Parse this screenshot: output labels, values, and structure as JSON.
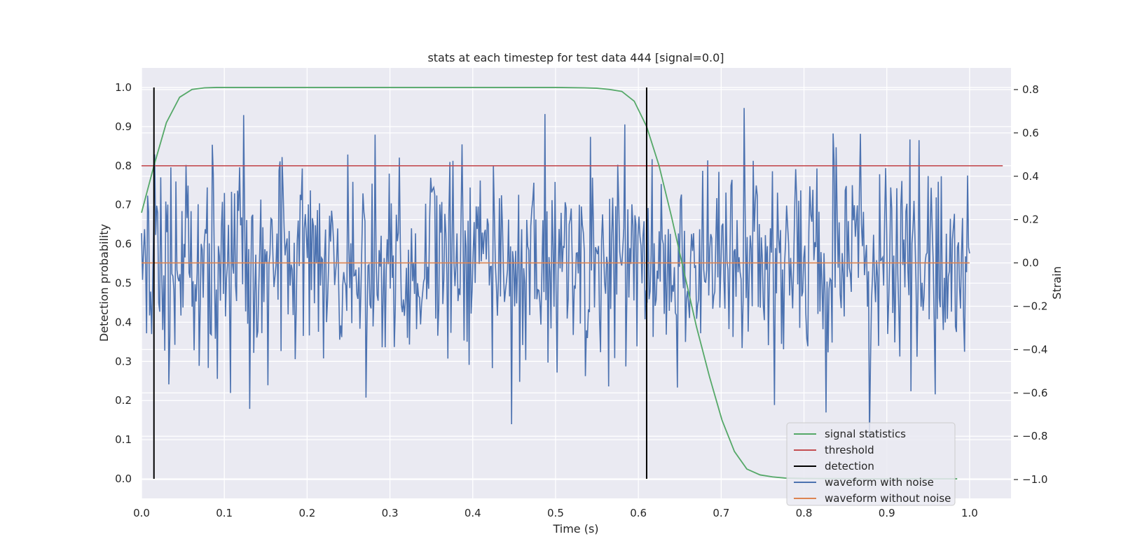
{
  "chart_data": {
    "type": "line",
    "title": "stats at each timestep for test data 444 [signal=0.0]",
    "xlabel": "Time (s)",
    "ylabel": "Detection probability",
    "y2label": "Strain",
    "xlim": [
      0.0,
      1.05
    ],
    "ylim": [
      -0.05,
      1.05
    ],
    "y2lim": [
      -1.087,
      0.9
    ],
    "xticks": [
      "0.0",
      "0.1",
      "0.2",
      "0.3",
      "0.4",
      "0.5",
      "0.6",
      "0.7",
      "0.8",
      "0.9",
      "1.0"
    ],
    "yticks": [
      "0.0",
      "0.1",
      "0.2",
      "0.3",
      "0.4",
      "0.5",
      "0.6",
      "0.7",
      "0.8",
      "0.9",
      "1.0"
    ],
    "y2ticks": [
      "−1.0",
      "−0.8",
      "−0.6",
      "−0.4",
      "−0.2",
      "0.0",
      "0.2",
      "0.4",
      "0.6",
      "0.8"
    ],
    "grid": true,
    "legend_position": "lower-right",
    "series": [
      {
        "name": "signal statistics",
        "color": "#55a868",
        "axis": "left",
        "x": [
          0.0,
          0.015,
          0.03,
          0.046,
          0.061,
          0.076,
          0.091,
          0.2,
          0.3,
          0.4,
          0.5,
          0.535,
          0.55,
          0.565,
          0.58,
          0.595,
          0.61,
          0.625,
          0.64,
          0.655,
          0.67,
          0.686,
          0.701,
          0.716,
          0.731,
          0.747,
          0.762,
          0.777,
          0.8,
          0.9,
          0.985
        ],
        "y": [
          0.68,
          0.8,
          0.91,
          0.975,
          0.995,
          0.999,
          1.0,
          1.0,
          1.0,
          1.0,
          1.0,
          0.999,
          0.998,
          0.995,
          0.99,
          0.965,
          0.9,
          0.8,
          0.67,
          0.53,
          0.39,
          0.26,
          0.15,
          0.07,
          0.025,
          0.01,
          0.005,
          0.002,
          0.001,
          0.0,
          0.0
        ]
      },
      {
        "name": "threshold",
        "color": "#c44e52",
        "axis": "left",
        "x": [
          0.0,
          1.04
        ],
        "y": [
          0.8,
          0.8
        ]
      },
      {
        "name": "detection",
        "color": "#000000",
        "axis": "left",
        "vlines": [
          0.015,
          0.61
        ],
        "ymin": 0.0,
        "ymax": 1.0
      },
      {
        "name": "waveform with noise",
        "color": "#4c72b0",
        "axis": "right",
        "x_start": 0.0,
        "x_end": 1.0,
        "points": 820,
        "amplitude_std": 0.25,
        "clip": [
          -0.99,
          0.81
        ]
      },
      {
        "name": "waveform without noise",
        "color": "#dd8452",
        "axis": "right",
        "x": [
          0.0,
          1.0
        ],
        "y": [
          0.0,
          0.0
        ]
      }
    ]
  }
}
